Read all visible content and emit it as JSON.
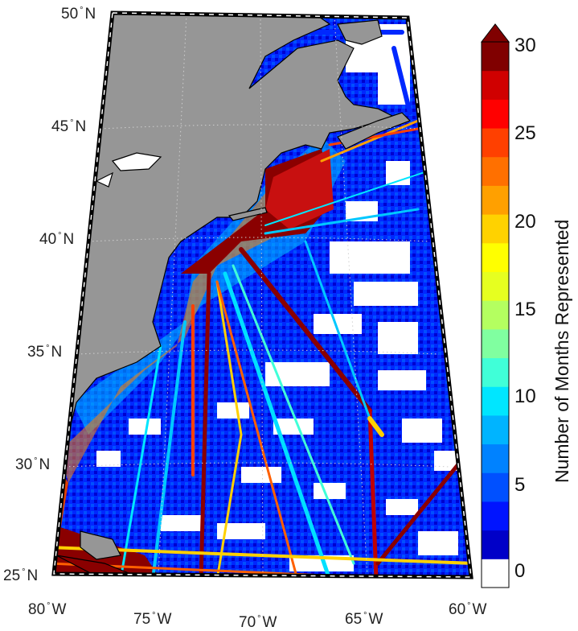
{
  "map": {
    "lat_labels": [
      {
        "deg": "50",
        "hem": "N"
      },
      {
        "deg": "45",
        "hem": "N"
      },
      {
        "deg": "40",
        "hem": "N"
      },
      {
        "deg": "35",
        "hem": "N"
      },
      {
        "deg": "30",
        "hem": "N"
      },
      {
        "deg": "25",
        "hem": "N"
      }
    ],
    "lon_labels": [
      {
        "deg": "80",
        "hem": "W"
      },
      {
        "deg": "75",
        "hem": "W"
      },
      {
        "deg": "70",
        "hem": "W"
      },
      {
        "deg": "65",
        "hem": "W"
      },
      {
        "deg": "60",
        "hem": "W"
      }
    ],
    "extent": {
      "lon_min": -80,
      "lon_max": -60,
      "lat_min": 25,
      "lat_max": 50
    },
    "land_color": "#969696",
    "graticule_style": "dotted"
  },
  "colorbar": {
    "title": "Number of Months Represented",
    "ticks": [
      "0",
      "5",
      "10",
      "15",
      "20",
      "25",
      "30"
    ],
    "colors": [
      "#ffffff",
      "#0000c8",
      "#0014ff",
      "#0050ff",
      "#0082ff",
      "#00b4ff",
      "#00e6ff",
      "#40ffd8",
      "#80ffa0",
      "#b4ff60",
      "#e6ff20",
      "#ffff00",
      "#ffd200",
      "#ffa000",
      "#ff7000",
      "#ff4000",
      "#ff0000",
      "#d00000",
      "#800000"
    ],
    "extend": "max"
  }
}
